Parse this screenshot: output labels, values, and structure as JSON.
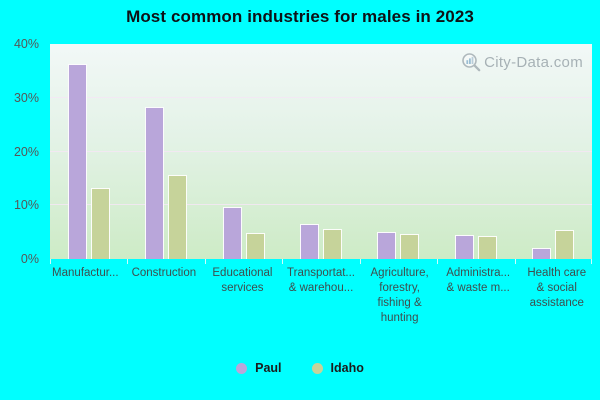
{
  "title": "Most common industries for males in 2023",
  "watermark": "City-Data.com",
  "colors": {
    "background": "#00FFFF",
    "paul_bar": "#b9a6da",
    "idaho_bar": "#c6d39a",
    "plot_gradient_top": "#f2f8f7",
    "plot_gradient_bottom": "#cdebc6",
    "gridline": "#f4e6f4",
    "title_text": "#0e1216",
    "ytick_text": "#565656",
    "xlabel_text": "#3e4e4e"
  },
  "chart_data": {
    "type": "bar",
    "title": "Most common industries for males in 2023",
    "categories": [
      "Manufactur...",
      "Construction",
      "Educational\nservices",
      "Transportat...\n& warehou...",
      "Agriculture,\nforestry,\nfishing &\nhunting",
      "Administra...\n& waste m...",
      "Health care\n& social\nassistance"
    ],
    "series": [
      {
        "name": "Paul",
        "color": "#b9a6da",
        "values": [
          36.3,
          28.2,
          9.6,
          6.5,
          5.0,
          4.4,
          2.1
        ]
      },
      {
        "name": "Idaho",
        "color": "#c6d39a",
        "values": [
          13.3,
          15.7,
          4.8,
          5.6,
          4.7,
          4.2,
          5.4
        ]
      }
    ],
    "xlabel": "",
    "ylabel": "",
    "ylim": [
      0,
      40
    ],
    "yticks": [
      {
        "value": 0,
        "label": "0%"
      },
      {
        "value": 10,
        "label": "10%"
      },
      {
        "value": 20,
        "label": "20%"
      },
      {
        "value": 30,
        "label": "30%"
      },
      {
        "value": 40,
        "label": "40%"
      }
    ],
    "grid": true,
    "legend_position": "bottom"
  }
}
